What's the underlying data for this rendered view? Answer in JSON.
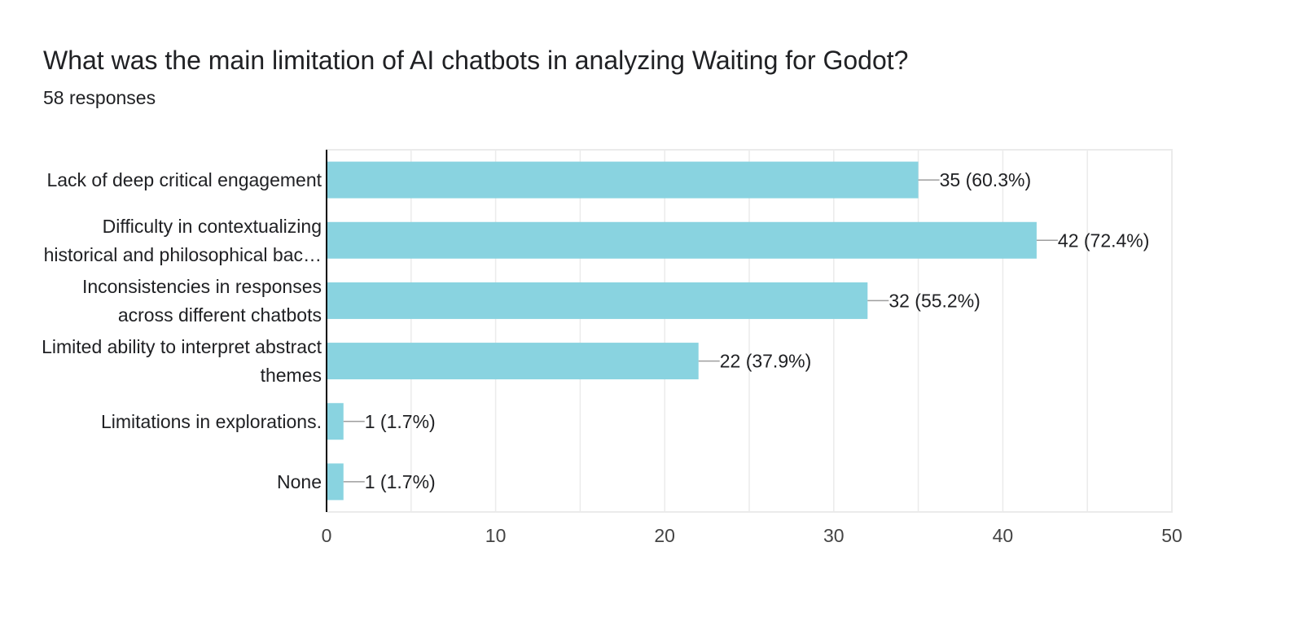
{
  "question": {
    "title": "What was the main limitation of AI chatbots in analyzing Waiting for Godot?",
    "responses": "58 responses"
  },
  "colors": {
    "bar": "#89d3e0",
    "grid": "#ebebeb",
    "axis": "#000000",
    "leader": "#9e9e9e",
    "text": "#202124",
    "tick": "#444444"
  },
  "chart_data": {
    "type": "bar",
    "orientation": "horizontal",
    "categories": [
      [
        "Lack of deep critical engagement"
      ],
      [
        "Difficulty in contextualizing",
        "historical and philosophical bac…"
      ],
      [
        "Inconsistencies in responses",
        "across different chatbots"
      ],
      [
        "Limited ability to interpret abstract",
        "themes"
      ],
      [
        "Limitations in explorations."
      ],
      [
        "None"
      ]
    ],
    "values": [
      35,
      42,
      32,
      22,
      1,
      1
    ],
    "data_labels": [
      "35 (60.3%)",
      "42 (72.4%)",
      "32 (55.2%)",
      "22 (37.9%)",
      "1 (1.7%)",
      "1 (1.7%)"
    ],
    "xlim": [
      0,
      50
    ],
    "xticks": [
      0,
      10,
      20,
      30,
      40,
      50
    ],
    "grid": true
  }
}
